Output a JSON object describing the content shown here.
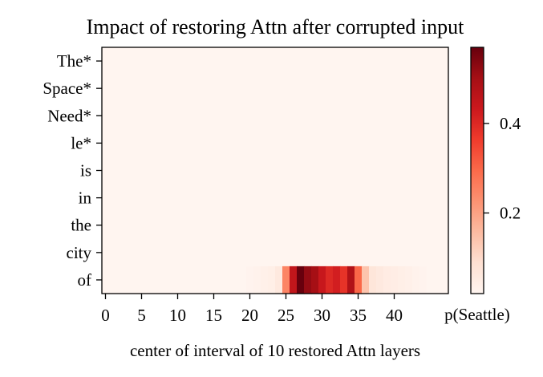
{
  "chart_data": {
    "type": "heatmap",
    "title": "Impact of restoring Attn after corrupted input",
    "xlabel": "center of interval of 10 restored Attn layers",
    "colorbar_label": "p(Seattle)",
    "colormap": "Reds",
    "rows": [
      "The*",
      "Space*",
      "Need*",
      "le*",
      "is",
      "in",
      "the",
      "city",
      "of"
    ],
    "x_ticks": [
      0,
      5,
      10,
      15,
      20,
      25,
      30,
      35,
      40
    ],
    "x_range": [
      0,
      47
    ],
    "colorbar_ticks": [
      0.2,
      0.4
    ],
    "color_range": [
      0.02,
      0.57
    ],
    "values": [
      [
        0.02,
        0.02,
        0.02,
        0.02,
        0.02,
        0.02,
        0.02,
        0.02,
        0.02,
        0.02,
        0.02,
        0.02,
        0.02,
        0.02,
        0.02,
        0.02,
        0.02,
        0.02,
        0.02,
        0.02,
        0.02,
        0.02,
        0.02,
        0.02,
        0.02,
        0.02,
        0.02,
        0.02,
        0.02,
        0.02,
        0.02,
        0.02,
        0.02,
        0.02,
        0.02,
        0.02,
        0.02,
        0.02,
        0.02,
        0.02,
        0.02,
        0.02,
        0.02,
        0.02,
        0.02,
        0.02,
        0.02,
        0.02
      ],
      [
        0.02,
        0.02,
        0.02,
        0.02,
        0.02,
        0.02,
        0.02,
        0.02,
        0.02,
        0.02,
        0.02,
        0.02,
        0.02,
        0.02,
        0.02,
        0.02,
        0.02,
        0.02,
        0.02,
        0.02,
        0.02,
        0.02,
        0.02,
        0.02,
        0.02,
        0.02,
        0.02,
        0.02,
        0.02,
        0.02,
        0.02,
        0.02,
        0.02,
        0.02,
        0.02,
        0.02,
        0.02,
        0.02,
        0.02,
        0.02,
        0.02,
        0.02,
        0.02,
        0.02,
        0.02,
        0.02,
        0.02,
        0.02
      ],
      [
        0.02,
        0.02,
        0.02,
        0.02,
        0.02,
        0.02,
        0.02,
        0.02,
        0.02,
        0.02,
        0.02,
        0.02,
        0.02,
        0.02,
        0.02,
        0.02,
        0.02,
        0.02,
        0.02,
        0.02,
        0.02,
        0.02,
        0.02,
        0.02,
        0.02,
        0.02,
        0.02,
        0.02,
        0.02,
        0.02,
        0.02,
        0.02,
        0.02,
        0.02,
        0.02,
        0.02,
        0.02,
        0.02,
        0.02,
        0.02,
        0.02,
        0.02,
        0.02,
        0.02,
        0.02,
        0.02,
        0.02,
        0.02
      ],
      [
        0.02,
        0.02,
        0.02,
        0.02,
        0.02,
        0.02,
        0.02,
        0.02,
        0.02,
        0.02,
        0.02,
        0.02,
        0.02,
        0.02,
        0.02,
        0.02,
        0.02,
        0.02,
        0.02,
        0.02,
        0.02,
        0.02,
        0.02,
        0.02,
        0.02,
        0.02,
        0.02,
        0.02,
        0.02,
        0.02,
        0.02,
        0.02,
        0.02,
        0.02,
        0.02,
        0.02,
        0.02,
        0.02,
        0.02,
        0.02,
        0.02,
        0.02,
        0.02,
        0.02,
        0.02,
        0.02,
        0.02,
        0.02
      ],
      [
        0.02,
        0.02,
        0.02,
        0.02,
        0.02,
        0.02,
        0.02,
        0.02,
        0.02,
        0.02,
        0.02,
        0.02,
        0.02,
        0.02,
        0.02,
        0.02,
        0.02,
        0.02,
        0.02,
        0.02,
        0.02,
        0.02,
        0.02,
        0.02,
        0.02,
        0.02,
        0.02,
        0.02,
        0.02,
        0.02,
        0.02,
        0.02,
        0.02,
        0.02,
        0.02,
        0.02,
        0.02,
        0.02,
        0.02,
        0.02,
        0.02,
        0.02,
        0.02,
        0.02,
        0.02,
        0.02,
        0.02,
        0.02
      ],
      [
        0.02,
        0.02,
        0.02,
        0.02,
        0.02,
        0.02,
        0.02,
        0.02,
        0.02,
        0.02,
        0.02,
        0.02,
        0.02,
        0.02,
        0.02,
        0.02,
        0.02,
        0.02,
        0.02,
        0.02,
        0.02,
        0.02,
        0.02,
        0.02,
        0.02,
        0.02,
        0.02,
        0.02,
        0.02,
        0.02,
        0.02,
        0.02,
        0.02,
        0.02,
        0.02,
        0.02,
        0.02,
        0.02,
        0.02,
        0.02,
        0.02,
        0.02,
        0.02,
        0.02,
        0.02,
        0.02,
        0.02,
        0.02
      ],
      [
        0.02,
        0.02,
        0.02,
        0.02,
        0.02,
        0.02,
        0.02,
        0.02,
        0.02,
        0.02,
        0.02,
        0.02,
        0.02,
        0.02,
        0.02,
        0.02,
        0.02,
        0.02,
        0.02,
        0.02,
        0.02,
        0.02,
        0.02,
        0.02,
        0.02,
        0.02,
        0.02,
        0.02,
        0.02,
        0.02,
        0.02,
        0.02,
        0.02,
        0.02,
        0.02,
        0.02,
        0.02,
        0.02,
        0.02,
        0.02,
        0.02,
        0.02,
        0.02,
        0.02,
        0.02,
        0.02,
        0.02,
        0.02
      ],
      [
        0.02,
        0.02,
        0.02,
        0.02,
        0.02,
        0.02,
        0.02,
        0.02,
        0.02,
        0.02,
        0.02,
        0.02,
        0.02,
        0.02,
        0.02,
        0.02,
        0.02,
        0.02,
        0.02,
        0.02,
        0.02,
        0.02,
        0.02,
        0.02,
        0.02,
        0.02,
        0.02,
        0.02,
        0.02,
        0.02,
        0.02,
        0.02,
        0.02,
        0.02,
        0.02,
        0.02,
        0.02,
        0.02,
        0.02,
        0.02,
        0.02,
        0.02,
        0.02,
        0.02,
        0.02,
        0.02,
        0.02,
        0.02
      ],
      [
        0.02,
        0.02,
        0.02,
        0.02,
        0.02,
        0.02,
        0.02,
        0.02,
        0.02,
        0.02,
        0.02,
        0.02,
        0.02,
        0.02,
        0.02,
        0.02,
        0.02,
        0.02,
        0.02,
        0.02,
        0.025,
        0.03,
        0.035,
        0.04,
        0.06,
        0.25,
        0.45,
        0.57,
        0.52,
        0.5,
        0.44,
        0.4,
        0.42,
        0.38,
        0.48,
        0.3,
        0.14,
        0.07,
        0.06,
        0.05,
        0.045,
        0.04,
        0.035,
        0.03,
        0.025,
        0.02,
        0.02,
        0.02
      ]
    ]
  }
}
